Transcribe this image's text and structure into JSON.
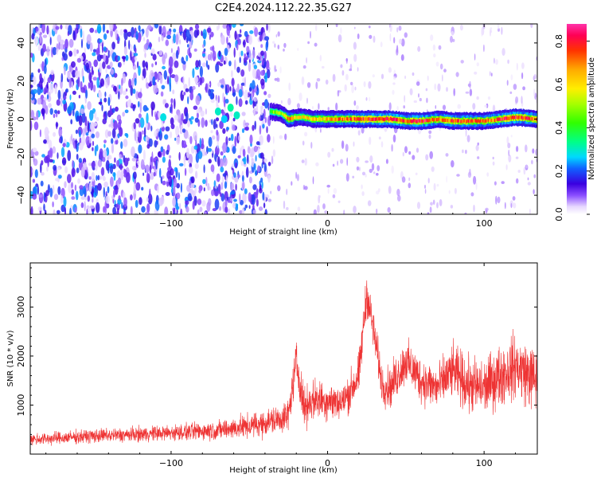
{
  "title": "C2E4.2024.112.22.35.G27",
  "colors": {
    "snr_line": "#ee3333",
    "trace_low": "#6a2cff",
    "trace_high": "#ff1a1a",
    "background": "#ffffff"
  },
  "chart_data": [
    {
      "type": "heatmap",
      "name": "spectrogram",
      "xlabel": "Height of straight line (km)",
      "ylabel": "Frequency (Hz)",
      "xlim": [
        -190,
        134
      ],
      "ylim": [
        -50,
        50
      ],
      "xticks": [
        -100,
        0,
        100
      ],
      "yticks": [
        -40,
        -20,
        0,
        20,
        40
      ],
      "colorbar": {
        "label": "Normalized spectral amplitude",
        "range": [
          0.0,
          0.88
        ],
        "ticks": [
          "0.0",
          "0.2",
          "0.4",
          "0.6",
          "0.8"
        ],
        "colormap": "gist_ncar-like (white-violet-blue-cyan-green-yellow-orange-red-magenta)"
      },
      "regions": [
        {
          "x_range": [
            -190,
            -37
          ],
          "description": "broadband noise, amplitude ~0.05-0.25"
        },
        {
          "x_range": [
            -37,
            134
          ],
          "description": "narrow carrier line near 0 Hz, amplitude ~0.4-0.85"
        }
      ],
      "carrier_trace": {
        "x": [
          -37,
          -30,
          -25,
          -20,
          -15,
          -10,
          0,
          10,
          20,
          30,
          40,
          50,
          60,
          70,
          80,
          90,
          100,
          110,
          120,
          134
        ],
        "frequency": [
          4,
          3,
          0,
          1,
          1,
          0,
          0,
          0,
          0,
          0,
          0,
          -1,
          -1,
          0,
          -1,
          -1,
          -1,
          0,
          1,
          0
        ],
        "amplitude": [
          0.45,
          0.5,
          0.75,
          0.55,
          0.6,
          0.6,
          0.65,
          0.7,
          0.75,
          0.8,
          0.8,
          0.75,
          0.8,
          0.7,
          0.75,
          0.72,
          0.7,
          0.75,
          0.8,
          0.7
        ]
      }
    },
    {
      "type": "line",
      "name": "snr",
      "xlabel": "Height of straight line (km)",
      "ylabel": "SNR (10 * v/v)",
      "xlim": [
        -190,
        134
      ],
      "ylim": [
        0,
        3900
      ],
      "xticks": [
        -100,
        0,
        100
      ],
      "yticks": [
        1000,
        2000,
        3000
      ],
      "series": [
        {
          "x": [
            -190,
            -170,
            -150,
            -130,
            -110,
            -90,
            -70,
            -50,
            -40,
            -30,
            -25,
            -20,
            -15,
            -10,
            0,
            10,
            20,
            25,
            30,
            35,
            40,
            50,
            60,
            70,
            80,
            90,
            100,
            110,
            120,
            134
          ],
          "y": [
            300,
            330,
            370,
            390,
            420,
            450,
            490,
            570,
            640,
            720,
            800,
            1900,
            950,
            1100,
            1100,
            1050,
            1600,
            3300,
            2400,
            1400,
            1350,
            1900,
            1500,
            1350,
            1700,
            1400,
            1350,
            1600,
            1800,
            1500
          ],
          "noise_amplitude": [
            150,
            160,
            170,
            180,
            190,
            210,
            240,
            300,
            330,
            360,
            380,
            500,
            500,
            500,
            480,
            450,
            550,
            500,
            500,
            480,
            520,
            550,
            560,
            580,
            650,
            700,
            700,
            750,
            800,
            780
          ]
        }
      ]
    }
  ]
}
